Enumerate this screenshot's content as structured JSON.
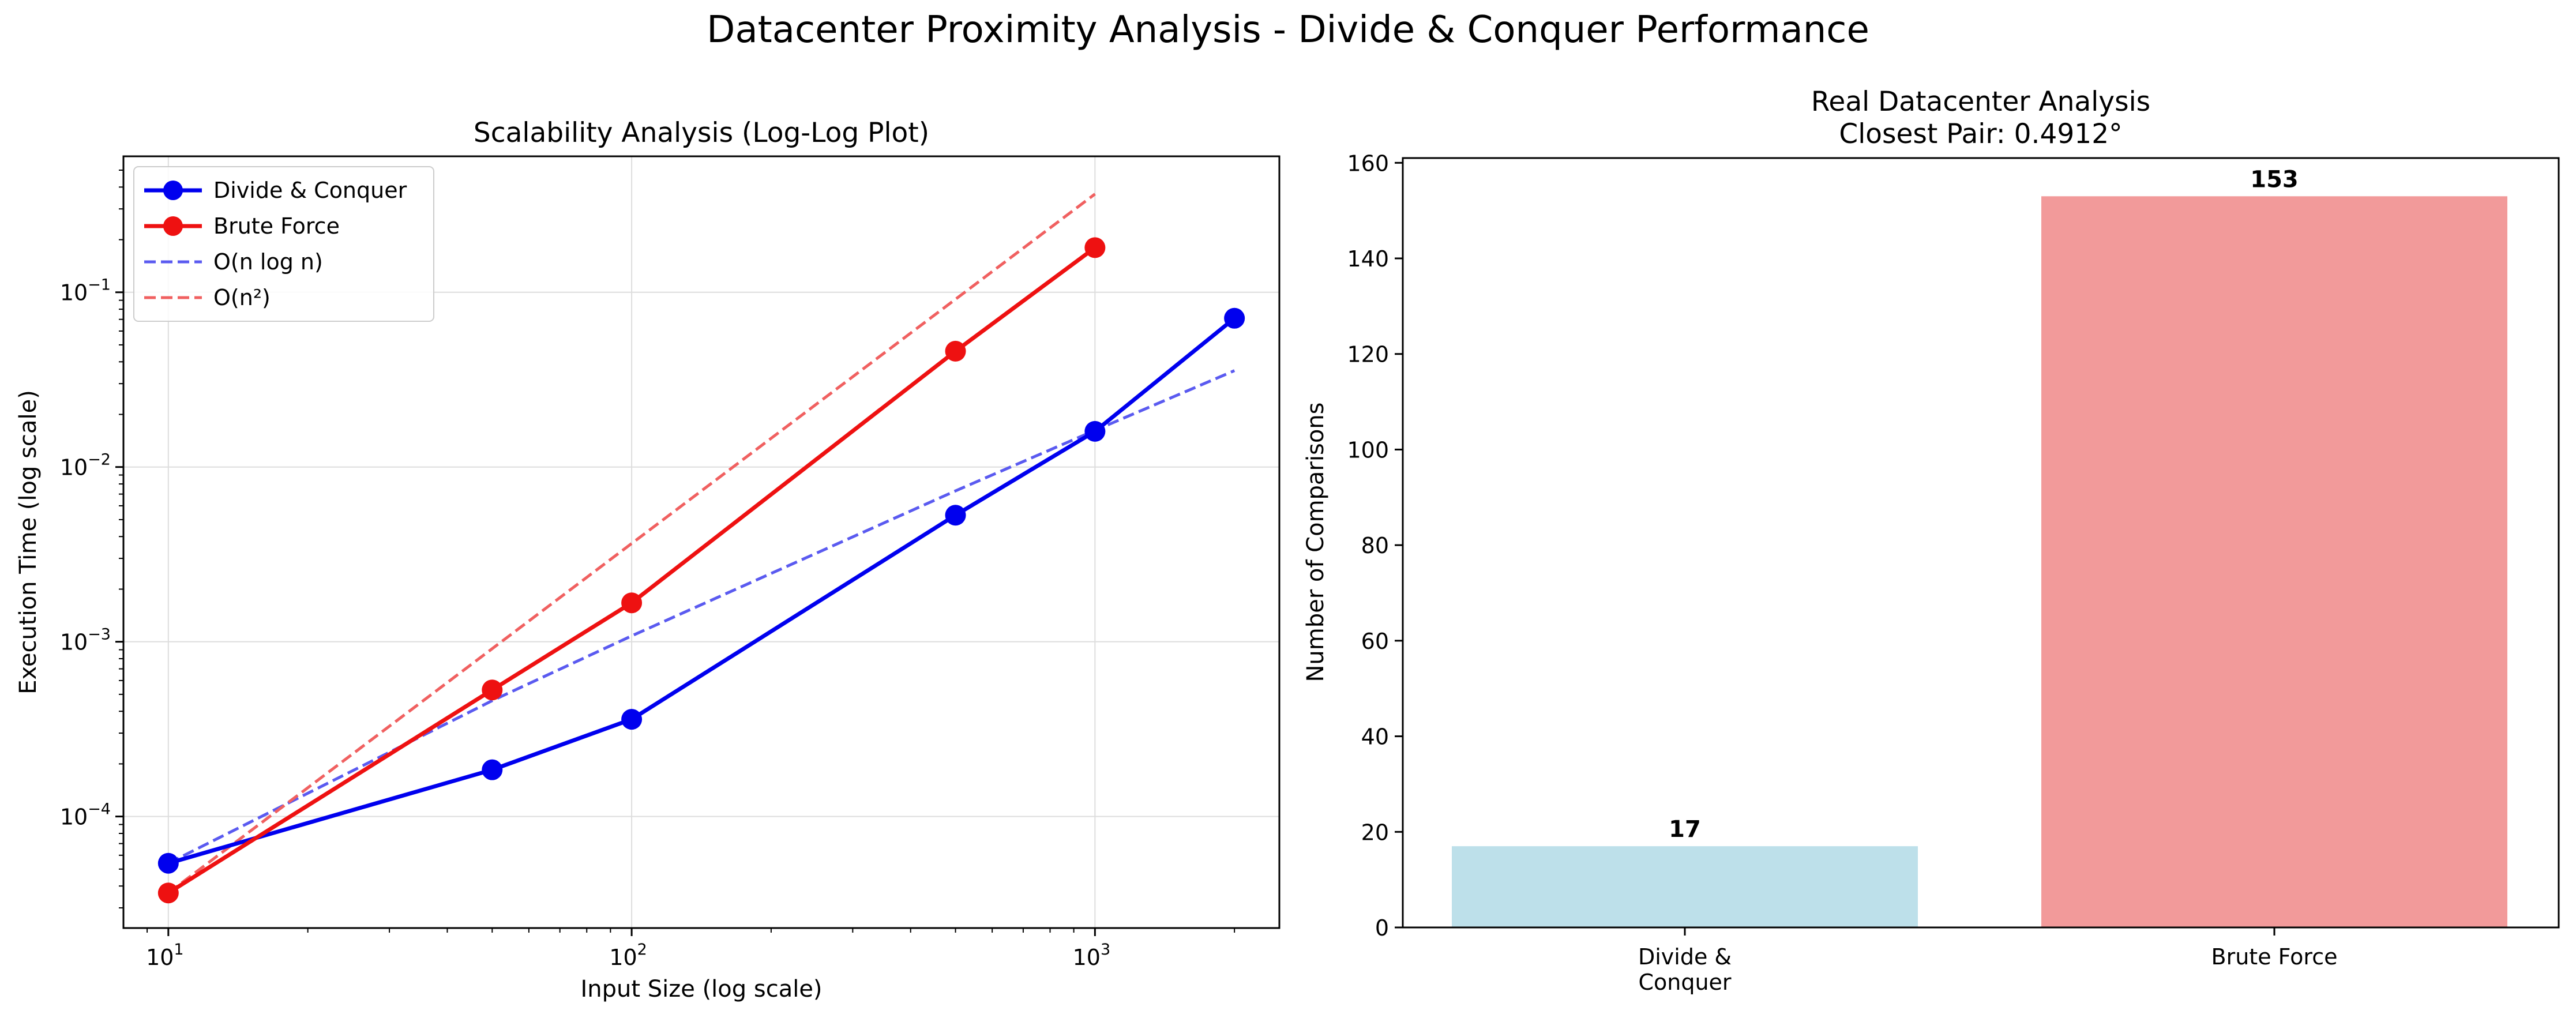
{
  "figure": {
    "suptitle": "Datacenter Proximity Analysis - Divide & Conquer Performance"
  },
  "chart_data": [
    {
      "type": "line",
      "title": "Scalability Analysis (Log-Log Plot)",
      "xlabel": "Input Size (log scale)",
      "ylabel": "Execution Time (log scale)",
      "xscale": "log",
      "yscale": "log",
      "xlim": [
        8,
        2500
      ],
      "ylim": [
        2.3e-05,
        0.6
      ],
      "xticks": [
        {
          "value": 10,
          "base": "10",
          "exp": "1"
        },
        {
          "value": 100,
          "base": "10",
          "exp": "2"
        },
        {
          "value": 1000,
          "base": "10",
          "exp": "3"
        }
      ],
      "yticks": [
        {
          "value": 0.0001,
          "base": "10",
          "exp": "−4"
        },
        {
          "value": 0.001,
          "base": "10",
          "exp": "−3"
        },
        {
          "value": 0.01,
          "base": "10",
          "exp": "−2"
        },
        {
          "value": 0.1,
          "base": "10",
          "exp": "−1"
        }
      ],
      "grid": true,
      "legend": "top-left",
      "series": [
        {
          "name": "Divide & Conquer",
          "color": "#0000ee",
          "style": "solid-marker",
          "x": [
            10,
            50,
            100,
            500,
            1000,
            2000
          ],
          "y": [
            5.4e-05,
            0.000185,
            0.00036,
            0.0053,
            0.016,
            0.071
          ]
        },
        {
          "name": "Brute Force",
          "color": "#ee1111",
          "style": "solid-marker",
          "x": [
            10,
            50,
            100,
            500,
            1000
          ],
          "y": [
            3.65e-05,
            0.00053,
            0.00167,
            0.046,
            0.18
          ]
        },
        {
          "name": "O(n log n)",
          "color": "#5a5af0",
          "style": "dashed",
          "x": [
            10,
            50,
            100,
            500,
            1000,
            2000
          ],
          "y": [
            5.4e-05,
            0.00046,
            0.00108,
            0.0073,
            0.0162,
            0.0356
          ]
        },
        {
          "name": "O(n²)",
          "color": "#f06060",
          "style": "dashed",
          "x": [
            10,
            1000
          ],
          "y": [
            3.65e-05,
            0.365
          ]
        }
      ]
    },
    {
      "type": "bar",
      "title": "Real Datacenter Analysis",
      "subtitle": "Closest Pair: 0.4912°",
      "xlabel": "",
      "ylabel": "Number of Comparisons",
      "ylim": [
        0,
        161
      ],
      "yticks": [
        0,
        20,
        40,
        60,
        80,
        100,
        120,
        140,
        160
      ],
      "categories": [
        [
          "Divide &",
          "Conquer"
        ],
        [
          "Brute Force"
        ]
      ],
      "values": [
        17,
        153
      ],
      "value_labels": [
        "17",
        "153"
      ],
      "colors": [
        "#bde0ea",
        "#f29a9a"
      ]
    }
  ]
}
